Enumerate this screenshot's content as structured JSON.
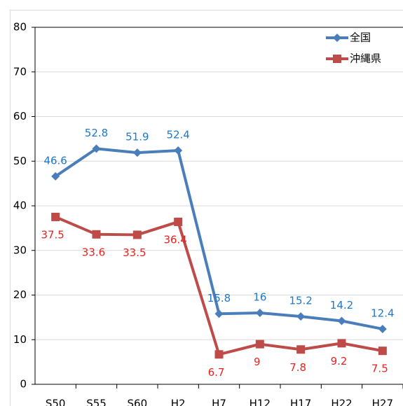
{
  "chart_data": {
    "type": "line",
    "categories": [
      "S50",
      "S55",
      "S60",
      "H2",
      "H7",
      "H12",
      "H17",
      "H22",
      "H27"
    ],
    "series": [
      {
        "name": "全国",
        "color": "#4a7ebb",
        "label_color": "#1f78c8",
        "marker": "diamond",
        "values": [
          46.6,
          52.8,
          51.9,
          52.4,
          15.8,
          16,
          15.2,
          14.2,
          12.4
        ]
      },
      {
        "name": "沖縄県",
        "color": "#be4b48",
        "label_color": "#e8231f",
        "marker": "square",
        "values": [
          37.5,
          33.6,
          33.5,
          36.4,
          6.7,
          9,
          7.8,
          9.2,
          7.5
        ]
      }
    ],
    "ylim": [
      0,
      80
    ],
    "yticks": [
      0,
      10,
      20,
      30,
      40,
      50,
      60,
      70,
      80
    ],
    "grid": true,
    "legend": "upper right"
  }
}
